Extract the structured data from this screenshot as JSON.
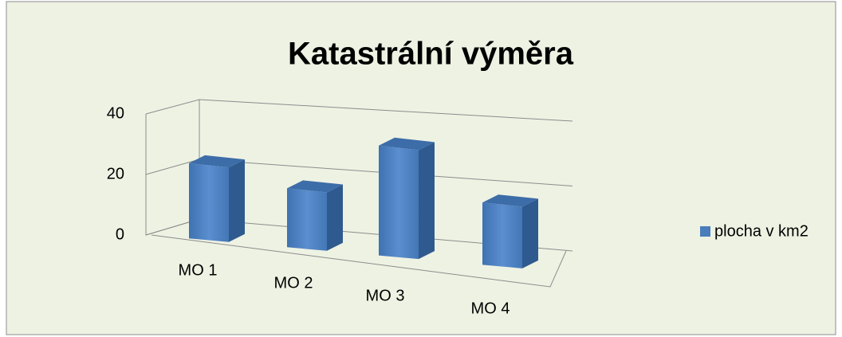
{
  "chart_data": {
    "type": "bar3d",
    "title": "Katastrální výměra",
    "categories": [
      "MO 1",
      "MO 2",
      "MO 3",
      "MO 4"
    ],
    "series": [
      {
        "name": "plocha v km2",
        "color": "#4a7ebb",
        "values": [
          25,
          20,
          38,
          22
        ]
      }
    ],
    "ylim": [
      0,
      40
    ],
    "yticks": [
      0,
      20,
      40
    ],
    "grid": true,
    "legend": "right"
  }
}
